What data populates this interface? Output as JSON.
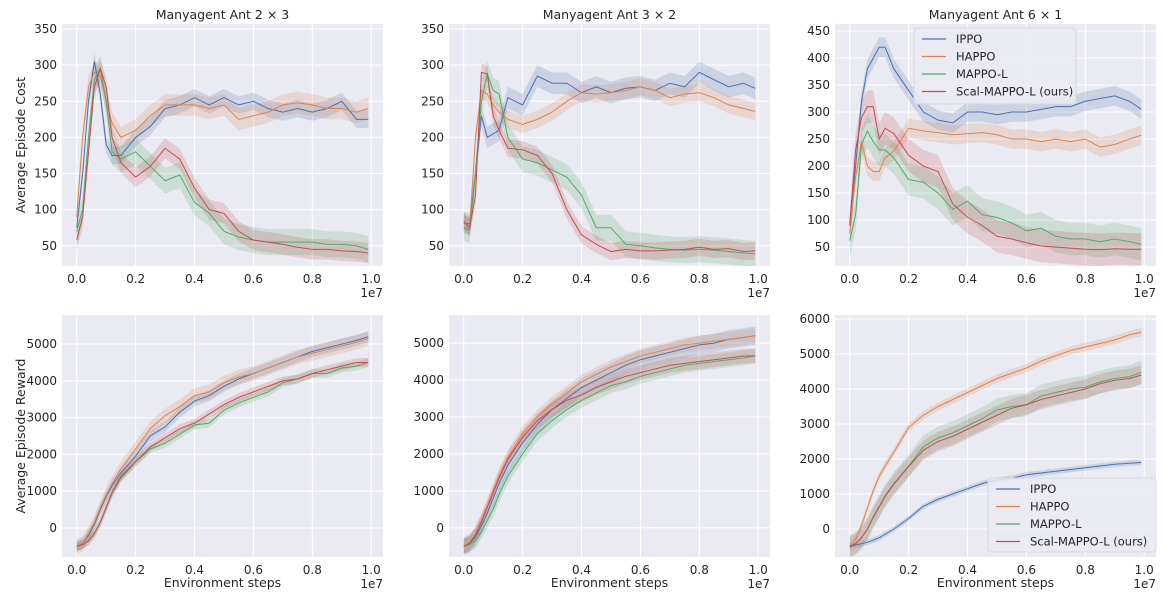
{
  "colors": {
    "IPPO": "#4c72b0",
    "HAPPO": "#dd8452",
    "MAPPO-L": "#55a868",
    "Scal-MAPPO-L (ours)": "#c44e52",
    "background": "#eaeaf2",
    "grid": "#ffffff"
  },
  "chart_data": [
    {
      "type": "line",
      "title": "Manyagent Ant 2 × 3",
      "xlabel": "",
      "ylabel": "Average Episode Cost",
      "offset_text": "1e7",
      "grid": true,
      "legend": "none",
      "xlim": [
        -0.05,
        1.04
      ],
      "ylim": [
        22,
        357
      ],
      "xticks": [
        "0.0",
        "0.2",
        "0.4",
        "0.6",
        "0.8",
        "1.0"
      ],
      "yticks": [
        "50",
        "100",
        "150",
        "200",
        "250",
        "300",
        "350"
      ],
      "x": [
        0,
        0.02,
        0.04,
        0.06,
        0.08,
        0.1,
        0.12,
        0.15,
        0.2,
        0.25,
        0.3,
        0.35,
        0.4,
        0.45,
        0.5,
        0.55,
        0.6,
        0.65,
        0.7,
        0.75,
        0.8,
        0.85,
        0.9,
        0.95,
        0.99
      ],
      "series": [
        {
          "name": "IPPO",
          "values": [
            75,
            150,
            250,
            305,
            260,
            190,
            175,
            175,
            200,
            215,
            240,
            245,
            255,
            245,
            255,
            245,
            250,
            240,
            235,
            240,
            235,
            240,
            250,
            225,
            225
          ],
          "band": 12
        },
        {
          "name": "HAPPO",
          "values": [
            90,
            200,
            270,
            290,
            285,
            250,
            220,
            200,
            210,
            230,
            245,
            245,
            245,
            240,
            245,
            225,
            230,
            235,
            245,
            248,
            245,
            240,
            240,
            235,
            240
          ],
          "band": 15
        },
        {
          "name": "MAPPO-L",
          "values": [
            70,
            100,
            200,
            280,
            295,
            250,
            180,
            170,
            180,
            160,
            140,
            148,
            110,
            95,
            70,
            62,
            58,
            55,
            55,
            55,
            55,
            52,
            52,
            50,
            45
          ],
          "band": 18
        },
        {
          "name": "Scal-MAPPO-L (ours)",
          "values": [
            58,
            90,
            180,
            270,
            295,
            270,
            200,
            165,
            145,
            160,
            185,
            170,
            130,
            100,
            95,
            70,
            58,
            55,
            52,
            48,
            45,
            45,
            43,
            42,
            40
          ],
          "band": 14
        }
      ]
    },
    {
      "type": "line",
      "title": "Manyagent Ant 3 × 2",
      "xlabel": "",
      "ylabel": "",
      "offset_text": "1e7",
      "grid": true,
      "legend": "none",
      "xlim": [
        -0.05,
        1.04
      ],
      "ylim": [
        22,
        357
      ],
      "xticks": [
        "0.0",
        "0.2",
        "0.4",
        "0.6",
        "0.8",
        "1.0"
      ],
      "yticks": [
        "50",
        "100",
        "150",
        "200",
        "250",
        "300",
        "350"
      ],
      "x": [
        0,
        0.02,
        0.04,
        0.06,
        0.08,
        0.1,
        0.12,
        0.15,
        0.2,
        0.25,
        0.3,
        0.35,
        0.4,
        0.45,
        0.5,
        0.55,
        0.6,
        0.65,
        0.7,
        0.75,
        0.8,
        0.85,
        0.9,
        0.95,
        0.99
      ],
      "series": [
        {
          "name": "IPPO",
          "values": [
            82,
            80,
            150,
            230,
            200,
            205,
            210,
            255,
            245,
            285,
            275,
            275,
            262,
            270,
            262,
            268,
            270,
            265,
            275,
            270,
            290,
            280,
            270,
            275,
            268
          ],
          "band": 15
        },
        {
          "name": "HAPPO",
          "values": [
            85,
            75,
            200,
            265,
            260,
            245,
            235,
            225,
            218,
            225,
            235,
            250,
            262,
            260,
            262,
            265,
            270,
            265,
            255,
            260,
            262,
            255,
            245,
            240,
            236
          ],
          "band": 12
        },
        {
          "name": "MAPPO-L",
          "values": [
            75,
            72,
            150,
            250,
            288,
            265,
            260,
            200,
            170,
            165,
            155,
            145,
            120,
            75,
            75,
            52,
            50,
            47,
            45,
            44,
            45,
            44,
            42,
            40,
            39
          ],
          "band": 18
        },
        {
          "name": "Scal-MAPPO-L (ours)",
          "values": [
            83,
            75,
            120,
            290,
            288,
            230,
            210,
            185,
            183,
            175,
            150,
            100,
            65,
            52,
            42,
            45,
            43,
            43,
            44,
            45,
            48,
            45,
            46,
            42,
            43
          ],
          "band": 12
        }
      ]
    },
    {
      "type": "line",
      "title": "Manyagent Ant 6 × 1",
      "xlabel": "",
      "ylabel": "",
      "offset_text": "1e7",
      "grid": true,
      "legend": "upper center",
      "xlim": [
        -0.05,
        1.04
      ],
      "ylim": [
        15,
        463
      ],
      "xticks": [
        "0.0",
        "0.2",
        "0.4",
        "0.6",
        "0.8",
        "1.0"
      ],
      "yticks": [
        "50",
        "100",
        "150",
        "200",
        "250",
        "300",
        "350",
        "400",
        "450"
      ],
      "x": [
        0,
        0.02,
        0.04,
        0.06,
        0.08,
        0.1,
        0.12,
        0.15,
        0.2,
        0.25,
        0.3,
        0.35,
        0.4,
        0.45,
        0.5,
        0.55,
        0.6,
        0.65,
        0.7,
        0.75,
        0.8,
        0.85,
        0.9,
        0.95,
        0.99
      ],
      "series": [
        {
          "name": "IPPO",
          "values": [
            95,
            200,
            320,
            380,
            400,
            420,
            420,
            380,
            340,
            300,
            285,
            280,
            300,
            300,
            295,
            300,
            300,
            305,
            310,
            310,
            320,
            325,
            330,
            320,
            305
          ],
          "band": 18
        },
        {
          "name": "HAPPO",
          "values": [
            75,
            180,
            245,
            200,
            190,
            190,
            215,
            228,
            270,
            265,
            262,
            258,
            260,
            262,
            258,
            250,
            250,
            245,
            250,
            245,
            250,
            235,
            240,
            250,
            257
          ],
          "band": 18
        },
        {
          "name": "MAPPO-L",
          "values": [
            62,
            110,
            240,
            265,
            245,
            230,
            230,
            215,
            175,
            170,
            150,
            120,
            135,
            110,
            105,
            95,
            80,
            85,
            70,
            65,
            65,
            60,
            65,
            60,
            55
          ],
          "band": 30
        },
        {
          "name": "Scal-MAPPO-L (ours)",
          "values": [
            90,
            230,
            290,
            310,
            310,
            250,
            270,
            260,
            220,
            200,
            190,
            130,
            105,
            90,
            70,
            65,
            58,
            52,
            50,
            48,
            46,
            45,
            47,
            46,
            46
          ],
          "band": 30
        }
      ]
    },
    {
      "type": "line",
      "title": "",
      "xlabel": "Environment steps",
      "ylabel": "Average Episode Reward",
      "offset_text": "1e7",
      "grid": true,
      "legend": "none",
      "xlim": [
        -0.05,
        1.04
      ],
      "ylim": [
        -790,
        5790
      ],
      "xticks": [
        "0.0",
        "0.2",
        "0.4",
        "0.6",
        "0.8",
        "1.0"
      ],
      "yticks": [
        "0",
        "1000",
        "2000",
        "3000",
        "4000",
        "5000"
      ],
      "x": [
        0,
        0.02,
        0.04,
        0.06,
        0.08,
        0.1,
        0.12,
        0.15,
        0.2,
        0.25,
        0.3,
        0.35,
        0.4,
        0.45,
        0.5,
        0.55,
        0.6,
        0.65,
        0.7,
        0.75,
        0.8,
        0.85,
        0.9,
        0.95,
        0.99
      ],
      "series": [
        {
          "name": "IPPO",
          "values": [
            -500,
            -420,
            -200,
            100,
            500,
            850,
            1150,
            1500,
            1950,
            2500,
            2750,
            3150,
            3450,
            3600,
            3850,
            4050,
            4200,
            4350,
            4500,
            4650,
            4800,
            4900,
            5000,
            5100,
            5200
          ],
          "band": 150
        },
        {
          "name": "HAPPO",
          "values": [
            -500,
            -420,
            -150,
            150,
            550,
            900,
            1200,
            1600,
            2150,
            2700,
            3050,
            3300,
            3600,
            3700,
            3950,
            4100,
            4200,
            4350,
            4500,
            4650,
            4750,
            4850,
            4950,
            5050,
            5150
          ],
          "band": 200
        },
        {
          "name": "MAPPO-L",
          "values": [
            -500,
            -450,
            -350,
            -150,
            150,
            550,
            950,
            1350,
            1800,
            2150,
            2300,
            2550,
            2800,
            2850,
            3200,
            3400,
            3550,
            3700,
            3950,
            4050,
            4200,
            4200,
            4350,
            4400,
            4500
          ],
          "band": 120
        },
        {
          "name": "Scal-MAPPO-L (ours)",
          "values": [
            -500,
            -450,
            -350,
            -150,
            150,
            550,
            950,
            1400,
            1800,
            2200,
            2450,
            2700,
            2850,
            3100,
            3350,
            3550,
            3700,
            3850,
            4000,
            4050,
            4200,
            4300,
            4400,
            4500,
            4500
          ],
          "band": 120
        }
      ]
    },
    {
      "type": "line",
      "title": "",
      "xlabel": "Environment steps",
      "ylabel": "",
      "offset_text": "1e7",
      "grid": true,
      "legend": "none",
      "xlim": [
        -0.05,
        1.04
      ],
      "ylim": [
        -790,
        5760
      ],
      "xticks": [
        "0.0",
        "0.2",
        "0.4",
        "0.6",
        "0.8",
        "1.0"
      ],
      "yticks": [
        "0",
        "1000",
        "2000",
        "3000",
        "4000",
        "5000"
      ],
      "x": [
        0,
        0.02,
        0.04,
        0.06,
        0.08,
        0.1,
        0.12,
        0.15,
        0.2,
        0.25,
        0.3,
        0.35,
        0.4,
        0.45,
        0.5,
        0.55,
        0.6,
        0.65,
        0.7,
        0.75,
        0.8,
        0.85,
        0.9,
        0.95,
        0.99
      ],
      "series": [
        {
          "name": "IPPO",
          "values": [
            -500,
            -420,
            -250,
            50,
            400,
            800,
            1200,
            1700,
            2300,
            2800,
            3200,
            3500,
            3800,
            4000,
            4200,
            4400,
            4550,
            4650,
            4750,
            4850,
            4950,
            5000,
            5100,
            5150,
            5200
          ],
          "band": 250
        },
        {
          "name": "HAPPO",
          "values": [
            -500,
            -400,
            -150,
            200,
            600,
            1000,
            1400,
            1900,
            2550,
            3000,
            3350,
            3650,
            3950,
            4150,
            4350,
            4500,
            4650,
            4750,
            4850,
            4950,
            5000,
            5050,
            5100,
            5150,
            5200
          ],
          "band": 200
        },
        {
          "name": "MAPPO-L",
          "values": [
            -500,
            -450,
            -350,
            -100,
            200,
            500,
            900,
            1400,
            2000,
            2550,
            2900,
            3200,
            3450,
            3650,
            3850,
            3950,
            4100,
            4200,
            4300,
            4400,
            4450,
            4500,
            4550,
            4600,
            4650
          ],
          "band": 200
        },
        {
          "name": "Scal-MAPPO-L (ours)",
          "values": [
            -500,
            -420,
            -200,
            150,
            550,
            950,
            1350,
            1850,
            2450,
            2900,
            3200,
            3450,
            3600,
            3800,
            3950,
            4100,
            4200,
            4300,
            4400,
            4450,
            4500,
            4550,
            4600,
            4650,
            4650
          ],
          "band": 200
        }
      ]
    },
    {
      "type": "line",
      "title": "",
      "xlabel": "Environment steps",
      "ylabel": "",
      "offset_text": "1e7",
      "grid": true,
      "legend": "lower right",
      "xlim": [
        -0.05,
        1.04
      ],
      "ylim": [
        -800,
        6114
      ],
      "xticks": [
        "0.0",
        "0.2",
        "0.4",
        "0.6",
        "0.8",
        "1.0"
      ],
      "yticks": [
        "0",
        "1000",
        "2000",
        "3000",
        "4000",
        "5000",
        "6000"
      ],
      "x": [
        0,
        0.02,
        0.04,
        0.06,
        0.08,
        0.1,
        0.12,
        0.15,
        0.2,
        0.25,
        0.3,
        0.35,
        0.4,
        0.45,
        0.5,
        0.55,
        0.6,
        0.65,
        0.7,
        0.75,
        0.8,
        0.85,
        0.9,
        0.95,
        0.99
      ],
      "series": [
        {
          "name": "IPPO",
          "values": [
            -500,
            -460,
            -420,
            -380,
            -320,
            -250,
            -150,
            0,
            300,
            650,
            850,
            1000,
            1150,
            1300,
            1400,
            1450,
            1550,
            1600,
            1650,
            1700,
            1750,
            1800,
            1850,
            1880,
            1900
          ],
          "band": 80
        },
        {
          "name": "HAPPO",
          "values": [
            -500,
            -300,
            100,
            600,
            1100,
            1500,
            1800,
            2200,
            2900,
            3250,
            3500,
            3700,
            3900,
            4100,
            4300,
            4450,
            4600,
            4800,
            4950,
            5100,
            5200,
            5300,
            5400,
            5550,
            5620
          ],
          "band": 120
        },
        {
          "name": "MAPPO-L",
          "values": [
            -500,
            -420,
            -250,
            0,
            350,
            650,
            950,
            1300,
            1800,
            2350,
            2600,
            2750,
            2950,
            3150,
            3400,
            3500,
            3550,
            3800,
            3900,
            4000,
            4050,
            4200,
            4300,
            4350,
            4480
          ],
          "band": 330
        },
        {
          "name": "Scal-MAPPO-L (ours)",
          "values": [
            -500,
            -420,
            -250,
            0,
            330,
            630,
            930,
            1280,
            1780,
            2250,
            2500,
            2650,
            2850,
            3050,
            3250,
            3450,
            3550,
            3700,
            3800,
            3900,
            4000,
            4150,
            4250,
            4300,
            4400
          ],
          "band": 280
        }
      ]
    }
  ]
}
